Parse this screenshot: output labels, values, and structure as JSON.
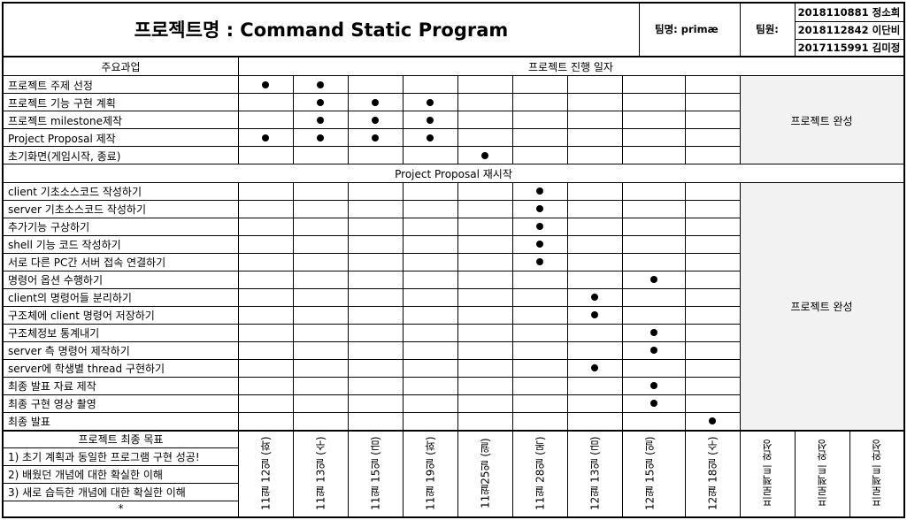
{
  "header": {
    "title": "프로젝트명 : Command Static Program",
    "team_name": "팀명: primæ",
    "members_label": "팀원:",
    "members": [
      "2018110881 정소희",
      "2018112842 이단비",
      "2017115991 김미정"
    ]
  },
  "columns": {
    "tasks_header": "주요과업",
    "dates_header": "프로젝트 진행 일자",
    "dates": [
      "11월 12일 (화)",
      "11월 13일 (수)",
      "11월 15일 (금)",
      "11월 19일 (화)",
      "11월25일 (월)",
      "11월 28일 (목)",
      "12월 13일 (금)",
      "12월 15일 (일)",
      "12월 18일 (수)"
    ],
    "complete_labels": [
      "프로젝트 완성",
      "프로젝트 완성",
      "프로젝트 완성"
    ]
  },
  "section1": {
    "tasks": [
      {
        "label": "프로젝트 주제 선정",
        "marks": [
          0,
          1
        ]
      },
      {
        "label": "프로젝트 기능 구현 계획",
        "marks": [
          1,
          2,
          3
        ]
      },
      {
        "label": "프로젝트 milestone제작",
        "marks": [
          1,
          2,
          3
        ]
      },
      {
        "label": "Project Proposal 제작",
        "marks": [
          0,
          1,
          2,
          3
        ]
      },
      {
        "label": "초기화면(게임시작, 종료)",
        "marks": [
          4
        ]
      }
    ],
    "complete_label": "프로젝트 완성"
  },
  "section2": {
    "title": "Project Proposal 재시작",
    "tasks": [
      {
        "label": "client 기초소스코드 작성하기",
        "marks": [
          5
        ]
      },
      {
        "label": "server 기초소스코드 작성하기",
        "marks": [
          5
        ]
      },
      {
        "label": "추가기능 구상하기",
        "marks": [
          5
        ]
      },
      {
        "label": "shell 기능 코드 작성하기",
        "marks": [
          5
        ]
      },
      {
        "label": "서로 다른 PC간 서버 접속 연결하기",
        "marks": [
          5
        ]
      },
      {
        "label": "명령어 옵션 수행하기",
        "marks": [
          7
        ]
      },
      {
        "label": "client의 명령어들 분리하기",
        "marks": [
          6
        ]
      },
      {
        "label": "구조체에 client 명령어 저장하기",
        "marks": [
          6
        ]
      },
      {
        "label": "구조체정보 통계내기",
        "marks": [
          7
        ]
      },
      {
        "label": "server 측 명령어 제작하기",
        "marks": [
          7
        ]
      },
      {
        "label": "server에  학생별 thread 구현하기",
        "marks": [
          6
        ]
      },
      {
        "label": "최종 발표 자료 제작",
        "marks": [
          7
        ]
      },
      {
        "label": "최종 구현 영상 촬영",
        "marks": [
          7
        ]
      },
      {
        "label": "최종 발표",
        "marks": [
          8
        ]
      }
    ],
    "complete_label": "프로젝트 완성"
  },
  "goals": {
    "title": "프로젝트 최종 목표",
    "items": [
      "1) 초기 계획과 동일한 프로그램 구현 성공!",
      "2) 배웠던 개념에 대한 확실한 이해",
      "3) 새로 습득한 개념에 대한 확실한 이해",
      "*"
    ]
  }
}
